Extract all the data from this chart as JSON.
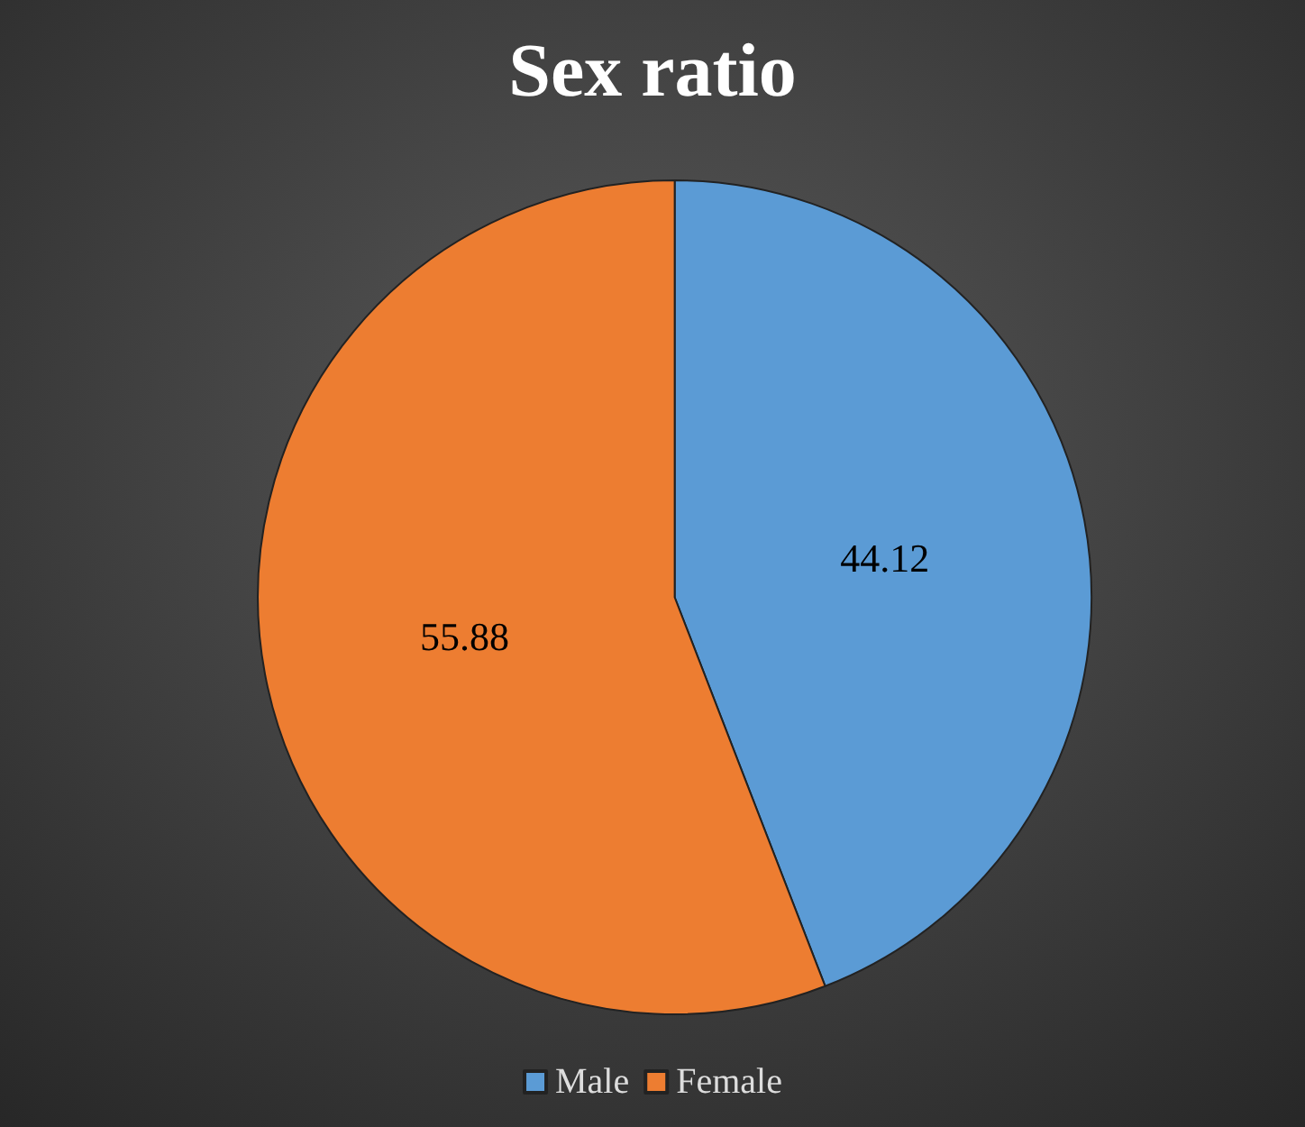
{
  "chart_data": {
    "type": "pie",
    "title": "Sex ratio",
    "categories": [
      "Male",
      "Female"
    ],
    "values": [
      44.12,
      55.88
    ],
    "colors": [
      "#5b9bd5",
      "#ed7d31"
    ],
    "data_labels": true,
    "legend": "bottom"
  }
}
